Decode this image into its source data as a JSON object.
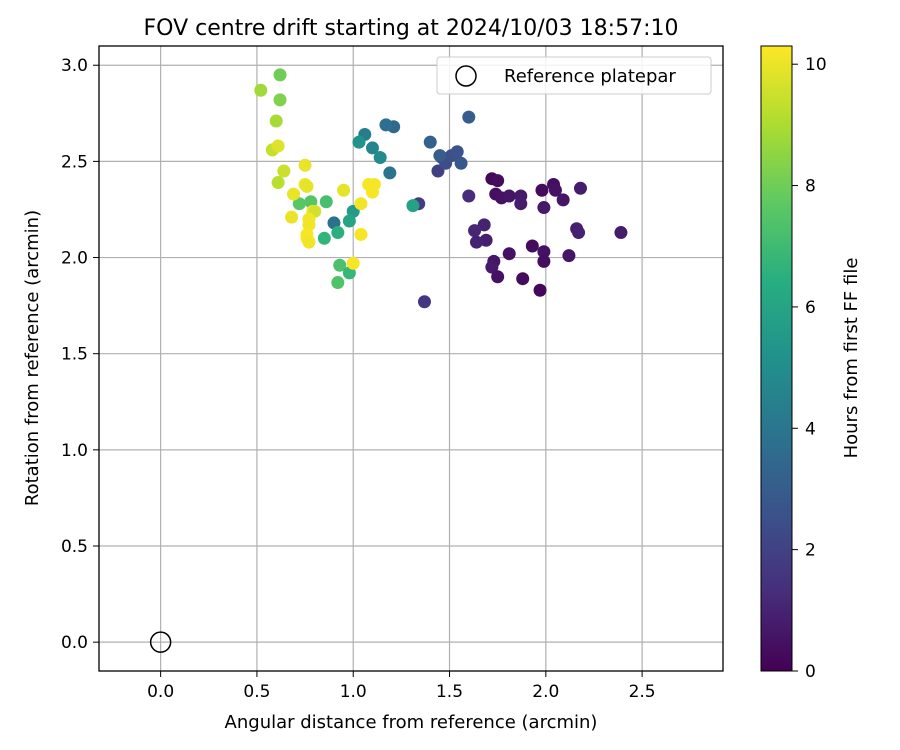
{
  "chart_data": {
    "type": "scatter",
    "title": "FOV centre drift starting at 2024/10/03 18:57:10",
    "xlabel": "Angular distance from reference (arcmin)",
    "ylabel": "Rotation from reference (arcmin)",
    "xlim": [
      -0.32,
      2.92
    ],
    "ylim": [
      -0.15,
      3.1
    ],
    "x_ticks": [
      "0.0",
      "0.5",
      "1.0",
      "1.5",
      "2.0",
      "2.5"
    ],
    "y_ticks": [
      "0.0",
      "0.5",
      "1.0",
      "1.5",
      "2.0",
      "2.5",
      "3.0"
    ],
    "grid": true,
    "legend": {
      "placement": "top-right",
      "entries": [
        "Reference platepar"
      ]
    },
    "reference_point": {
      "x": 0.0,
      "y": 0.0
    },
    "colorbar": {
      "label": "Hours from first FF file",
      "range": [
        0,
        10.3
      ],
      "ticks": [
        "0",
        "2",
        "4",
        "6",
        "8",
        "10"
      ],
      "colormap": "viridis"
    },
    "series": [
      {
        "points": [
          [
            1.72,
            2.41,
            0.2
          ],
          [
            1.75,
            2.4,
            0.3
          ],
          [
            1.74,
            2.33,
            0.4
          ],
          [
            1.77,
            2.31,
            0.5
          ],
          [
            1.81,
            2.32,
            0.6
          ],
          [
            1.87,
            2.32,
            0.7
          ],
          [
            1.87,
            2.28,
            0.8
          ],
          [
            1.98,
            2.35,
            0.3
          ],
          [
            2.04,
            2.38,
            0.4
          ],
          [
            2.05,
            2.35,
            0.5
          ],
          [
            2.09,
            2.3,
            0.6
          ],
          [
            1.99,
            2.26,
            0.7
          ],
          [
            2.18,
            2.36,
            0.8
          ],
          [
            2.16,
            2.15,
            0.9
          ],
          [
            2.17,
            2.13,
            1.0
          ],
          [
            2.39,
            2.13,
            0.8
          ],
          [
            2.12,
            2.01,
            0.6
          ],
          [
            1.99,
            2.03,
            0.5
          ],
          [
            1.99,
            1.98,
            0.4
          ],
          [
            1.93,
            2.06,
            0.3
          ],
          [
            1.97,
            1.83,
            0.2
          ],
          [
            1.88,
            1.89,
            0.3
          ],
          [
            1.81,
            2.02,
            0.5
          ],
          [
            1.73,
            1.98,
            0.6
          ],
          [
            1.72,
            1.95,
            0.7
          ],
          [
            1.75,
            1.9,
            0.5
          ],
          [
            1.69,
            2.09,
            0.9
          ],
          [
            1.68,
            2.17,
            1.0
          ],
          [
            1.63,
            2.14,
            1.1
          ],
          [
            1.64,
            2.08,
            1.0
          ],
          [
            1.6,
            2.32,
            1.3
          ],
          [
            1.37,
            1.77,
            1.6
          ],
          [
            1.34,
            2.28,
            1.8
          ],
          [
            1.44,
            2.45,
            2.0
          ],
          [
            1.46,
            2.52,
            2.2
          ],
          [
            1.48,
            2.49,
            2.4
          ],
          [
            1.51,
            2.53,
            2.5
          ],
          [
            1.54,
            2.55,
            2.6
          ],
          [
            1.56,
            2.49,
            2.8
          ],
          [
            1.45,
            2.53,
            3.0
          ],
          [
            1.4,
            2.6,
            3.2
          ],
          [
            1.6,
            2.73,
            3.0
          ],
          [
            1.21,
            2.68,
            3.5
          ],
          [
            1.17,
            2.69,
            3.7
          ],
          [
            1.19,
            2.44,
            3.9
          ],
          [
            1.06,
            2.64,
            4.3
          ],
          [
            1.1,
            2.57,
            4.6
          ],
          [
            1.14,
            2.52,
            4.9
          ],
          [
            1.03,
            2.6,
            5.2
          ],
          [
            0.9,
            2.18,
            3.8
          ],
          [
            1.31,
            2.27,
            5.9
          ],
          [
            1.0,
            2.24,
            5.6
          ],
          [
            0.98,
            2.19,
            6.0
          ],
          [
            0.92,
            2.13,
            6.5
          ],
          [
            0.85,
            2.1,
            6.7
          ],
          [
            0.86,
            2.29,
            7.2
          ],
          [
            0.78,
            2.29,
            7.5
          ],
          [
            0.72,
            2.28,
            7.6
          ],
          [
            0.93,
            1.96,
            7.3
          ],
          [
            0.98,
            1.92,
            6.8
          ],
          [
            0.92,
            1.87,
            7.4
          ],
          [
            0.62,
            2.95,
            8.0
          ],
          [
            0.62,
            2.82,
            8.3
          ],
          [
            0.52,
            2.87,
            8.8
          ],
          [
            0.6,
            2.71,
            8.9
          ],
          [
            0.58,
            2.56,
            9.4
          ],
          [
            0.61,
            2.58,
            9.8
          ],
          [
            0.64,
            2.45,
            9.5
          ],
          [
            0.61,
            2.39,
            9.2
          ],
          [
            0.75,
            2.48,
            10.0
          ],
          [
            0.75,
            2.38,
            10.1
          ],
          [
            0.76,
            2.37,
            9.9
          ],
          [
            0.69,
            2.33,
            10.0
          ],
          [
            0.68,
            2.21,
            10.0
          ],
          [
            0.79,
            2.24,
            10.2
          ],
          [
            0.8,
            2.24,
            9.6
          ],
          [
            0.77,
            2.2,
            10.1
          ],
          [
            0.77,
            2.17,
            10.1
          ],
          [
            0.76,
            2.12,
            10.2
          ],
          [
            0.76,
            2.1,
            10.2
          ],
          [
            0.77,
            2.08,
            10.1
          ],
          [
            0.95,
            2.35,
            9.9
          ],
          [
            1.04,
            2.28,
            10.1
          ],
          [
            1.08,
            2.38,
            10.2
          ],
          [
            1.11,
            2.38,
            10.2
          ],
          [
            1.1,
            2.34,
            10.2
          ],
          [
            1.04,
            2.12,
            10.2
          ],
          [
            1.0,
            1.97,
            10.2
          ]
        ]
      }
    ]
  }
}
